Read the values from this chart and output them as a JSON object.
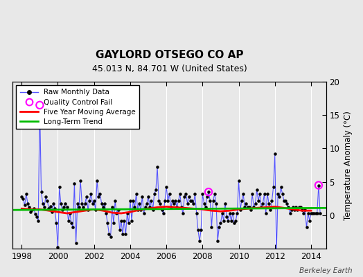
{
  "title": "GAYLORD OTSEGO CO AP",
  "subtitle": "45.013 N, 84.701 W (United States)",
  "ylabel_right": "Temperature Anomaly (°C)",
  "credit": "Berkeley Earth",
  "ylim": [
    -5,
    20
  ],
  "yticks": [
    0,
    5,
    10,
    15,
    20
  ],
  "xlim": [
    1997.5,
    2014.83
  ],
  "xticks": [
    1998,
    2000,
    2002,
    2004,
    2006,
    2008,
    2010,
    2012,
    2014
  ],
  "fig_bg_color": "#e8e8e8",
  "plot_bg_color": "#e8e8e8",
  "grid_color": "#ffffff",
  "raw_color": "#5555ff",
  "dot_color": "#000000",
  "ma_color": "#ff0000",
  "trend_color": "#00bb00",
  "qc_color": "#ff00ff",
  "raw_data": [
    [
      1998.0,
      2.8
    ],
    [
      1998.083,
      2.5
    ],
    [
      1998.167,
      1.5
    ],
    [
      1998.25,
      3.2
    ],
    [
      1998.333,
      1.8
    ],
    [
      1998.417,
      1.2
    ],
    [
      1998.5,
      0.5
    ],
    [
      1998.583,
      0.8
    ],
    [
      1998.667,
      1.0
    ],
    [
      1998.75,
      0.2
    ],
    [
      1998.833,
      -0.2
    ],
    [
      1998.917,
      -0.8
    ],
    [
      1999.0,
      16.5
    ],
    [
      1999.083,
      3.5
    ],
    [
      1999.167,
      1.8
    ],
    [
      1999.25,
      1.2
    ],
    [
      1999.333,
      2.8
    ],
    [
      1999.417,
      2.2
    ],
    [
      1999.5,
      1.0
    ],
    [
      1999.583,
      1.3
    ],
    [
      1999.667,
      0.5
    ],
    [
      1999.75,
      1.8
    ],
    [
      1999.833,
      1.0
    ],
    [
      1999.917,
      -1.2
    ],
    [
      2000.0,
      -4.8
    ],
    [
      2000.083,
      4.2
    ],
    [
      2000.167,
      1.8
    ],
    [
      2000.25,
      0.8
    ],
    [
      2000.333,
      1.2
    ],
    [
      2000.417,
      1.8
    ],
    [
      2000.5,
      1.2
    ],
    [
      2000.583,
      -0.8
    ],
    [
      2000.667,
      0.3
    ],
    [
      2000.75,
      -1.2
    ],
    [
      2000.833,
      -1.8
    ],
    [
      2000.917,
      4.8
    ],
    [
      2001.0,
      -4.2
    ],
    [
      2001.083,
      1.8
    ],
    [
      2001.167,
      1.2
    ],
    [
      2001.25,
      5.2
    ],
    [
      2001.333,
      1.8
    ],
    [
      2001.417,
      1.2
    ],
    [
      2001.5,
      1.8
    ],
    [
      2001.583,
      2.8
    ],
    [
      2001.667,
      0.8
    ],
    [
      2001.75,
      2.2
    ],
    [
      2001.833,
      3.2
    ],
    [
      2001.917,
      1.8
    ],
    [
      2002.0,
      2.2
    ],
    [
      2002.083,
      0.8
    ],
    [
      2002.167,
      5.2
    ],
    [
      2002.25,
      2.8
    ],
    [
      2002.333,
      3.2
    ],
    [
      2002.417,
      1.8
    ],
    [
      2002.5,
      1.2
    ],
    [
      2002.583,
      1.8
    ],
    [
      2002.667,
      0.3
    ],
    [
      2002.75,
      -1.2
    ],
    [
      2002.833,
      -2.8
    ],
    [
      2002.917,
      -3.2
    ],
    [
      2003.0,
      1.2
    ],
    [
      2003.083,
      -1.2
    ],
    [
      2003.167,
      2.2
    ],
    [
      2003.25,
      0.3
    ],
    [
      2003.333,
      0.8
    ],
    [
      2003.417,
      -2.2
    ],
    [
      2003.5,
      -0.8
    ],
    [
      2003.583,
      -2.8
    ],
    [
      2003.667,
      -0.8
    ],
    [
      2003.75,
      -2.8
    ],
    [
      2003.833,
      0.3
    ],
    [
      2003.917,
      -1.2
    ],
    [
      2004.0,
      2.2
    ],
    [
      2004.083,
      -0.8
    ],
    [
      2004.167,
      2.2
    ],
    [
      2004.25,
      1.2
    ],
    [
      2004.333,
      3.2
    ],
    [
      2004.417,
      0.8
    ],
    [
      2004.5,
      1.8
    ],
    [
      2004.583,
      0.8
    ],
    [
      2004.667,
      2.8
    ],
    [
      2004.75,
      0.3
    ],
    [
      2004.833,
      1.2
    ],
    [
      2004.917,
      1.8
    ],
    [
      2005.0,
      2.8
    ],
    [
      2005.083,
      1.2
    ],
    [
      2005.167,
      2.2
    ],
    [
      2005.25,
      0.8
    ],
    [
      2005.333,
      3.2
    ],
    [
      2005.417,
      3.8
    ],
    [
      2005.5,
      7.2
    ],
    [
      2005.583,
      2.2
    ],
    [
      2005.667,
      1.8
    ],
    [
      2005.75,
      0.8
    ],
    [
      2005.833,
      0.3
    ],
    [
      2005.917,
      2.2
    ],
    [
      2006.0,
      4.2
    ],
    [
      2006.083,
      2.2
    ],
    [
      2006.167,
      3.2
    ],
    [
      2006.25,
      1.2
    ],
    [
      2006.333,
      2.2
    ],
    [
      2006.417,
      1.8
    ],
    [
      2006.5,
      2.2
    ],
    [
      2006.583,
      1.2
    ],
    [
      2006.667,
      2.2
    ],
    [
      2006.75,
      3.2
    ],
    [
      2006.833,
      1.2
    ],
    [
      2006.917,
      0.3
    ],
    [
      2007.0,
      2.8
    ],
    [
      2007.083,
      3.2
    ],
    [
      2007.167,
      1.8
    ],
    [
      2007.25,
      2.8
    ],
    [
      2007.333,
      2.2
    ],
    [
      2007.417,
      2.2
    ],
    [
      2007.5,
      1.8
    ],
    [
      2007.583,
      3.2
    ],
    [
      2007.667,
      0.3
    ],
    [
      2007.75,
      -2.2
    ],
    [
      2007.833,
      -3.8
    ],
    [
      2007.917,
      -2.2
    ],
    [
      2008.0,
      3.2
    ],
    [
      2008.083,
      1.8
    ],
    [
      2008.167,
      1.2
    ],
    [
      2008.25,
      2.8
    ],
    [
      2008.333,
      3.5
    ],
    [
      2008.417,
      2.2
    ],
    [
      2008.5,
      -1.8
    ],
    [
      2008.583,
      2.2
    ],
    [
      2008.667,
      3.2
    ],
    [
      2008.75,
      1.8
    ],
    [
      2008.833,
      -3.8
    ],
    [
      2008.917,
      -1.8
    ],
    [
      2009.0,
      -1.2
    ],
    [
      2009.083,
      0.3
    ],
    [
      2009.167,
      -0.8
    ],
    [
      2009.25,
      1.8
    ],
    [
      2009.333,
      -0.2
    ],
    [
      2009.417,
      -0.8
    ],
    [
      2009.5,
      0.3
    ],
    [
      2009.583,
      -0.8
    ],
    [
      2009.667,
      0.3
    ],
    [
      2009.75,
      -1.2
    ],
    [
      2009.833,
      -0.8
    ],
    [
      2009.917,
      0.3
    ],
    [
      2010.0,
      5.2
    ],
    [
      2010.083,
      0.8
    ],
    [
      2010.167,
      2.2
    ],
    [
      2010.25,
      3.2
    ],
    [
      2010.333,
      1.2
    ],
    [
      2010.417,
      1.8
    ],
    [
      2010.5,
      1.2
    ],
    [
      2010.583,
      1.2
    ],
    [
      2010.667,
      0.8
    ],
    [
      2010.75,
      3.2
    ],
    [
      2010.833,
      1.2
    ],
    [
      2010.917,
      1.8
    ],
    [
      2011.0,
      3.8
    ],
    [
      2011.083,
      2.2
    ],
    [
      2011.167,
      3.2
    ],
    [
      2011.25,
      1.2
    ],
    [
      2011.333,
      1.8
    ],
    [
      2011.417,
      3.2
    ],
    [
      2011.5,
      0.3
    ],
    [
      2011.583,
      3.2
    ],
    [
      2011.667,
      1.8
    ],
    [
      2011.75,
      0.8
    ],
    [
      2011.833,
      2.2
    ],
    [
      2011.917,
      4.2
    ],
    [
      2012.0,
      9.2
    ],
    [
      2012.083,
      -5.8
    ],
    [
      2012.167,
      3.2
    ],
    [
      2012.25,
      2.8
    ],
    [
      2012.333,
      4.2
    ],
    [
      2012.417,
      3.2
    ],
    [
      2012.5,
      2.2
    ],
    [
      2012.583,
      2.2
    ],
    [
      2012.667,
      1.8
    ],
    [
      2012.75,
      1.2
    ],
    [
      2012.833,
      0.3
    ],
    [
      2012.917,
      0.8
    ],
    [
      2013.0,
      1.2
    ],
    [
      2013.083,
      0.8
    ],
    [
      2013.167,
      1.2
    ],
    [
      2013.25,
      0.8
    ],
    [
      2013.333,
      1.2
    ],
    [
      2013.417,
      1.2
    ],
    [
      2013.5,
      0.8
    ],
    [
      2013.583,
      0.3
    ],
    [
      2013.667,
      0.8
    ],
    [
      2013.75,
      -1.8
    ],
    [
      2013.833,
      0.3
    ],
    [
      2013.917,
      -0.8
    ],
    [
      2014.0,
      0.3
    ],
    [
      2014.083,
      0.3
    ],
    [
      2014.167,
      0.3
    ],
    [
      2014.25,
      0.3
    ],
    [
      2014.333,
      0.3
    ],
    [
      2014.417,
      4.5
    ],
    [
      2014.5,
      0.3
    ]
  ],
  "qc_fail_points": [
    [
      1999.0,
      16.5
    ],
    [
      2008.333,
      3.5
    ],
    [
      2014.417,
      4.5
    ]
  ],
  "moving_avg": [
    [
      1998.0,
      1.0
    ],
    [
      1998.5,
      0.9
    ],
    [
      1999.0,
      0.9
    ],
    [
      1999.5,
      0.7
    ],
    [
      2000.0,
      0.5
    ],
    [
      2000.5,
      0.3
    ],
    [
      2001.0,
      0.5
    ],
    [
      2001.5,
      0.7
    ],
    [
      2002.0,
      0.9
    ],
    [
      2002.5,
      0.7
    ],
    [
      2003.0,
      0.4
    ],
    [
      2003.5,
      0.3
    ],
    [
      2004.0,
      0.5
    ],
    [
      2004.5,
      0.8
    ],
    [
      2005.0,
      1.0
    ],
    [
      2005.5,
      1.2
    ],
    [
      2006.0,
      1.3
    ],
    [
      2006.5,
      1.2
    ],
    [
      2007.0,
      1.1
    ],
    [
      2007.5,
      1.0
    ],
    [
      2008.0,
      0.9
    ],
    [
      2008.5,
      0.7
    ],
    [
      2009.0,
      0.6
    ],
    [
      2009.5,
      0.7
    ],
    [
      2010.0,
      0.9
    ],
    [
      2010.5,
      1.0
    ],
    [
      2011.0,
      1.1
    ],
    [
      2011.5,
      1.2
    ],
    [
      2012.0,
      1.3
    ],
    [
      2012.5,
      1.1
    ],
    [
      2013.0,
      0.9
    ],
    [
      2013.5,
      0.7
    ],
    [
      2014.0,
      0.7
    ]
  ],
  "trend_x": [
    1997.5,
    2014.83
  ],
  "trend_y": [
    0.8,
    1.1
  ]
}
